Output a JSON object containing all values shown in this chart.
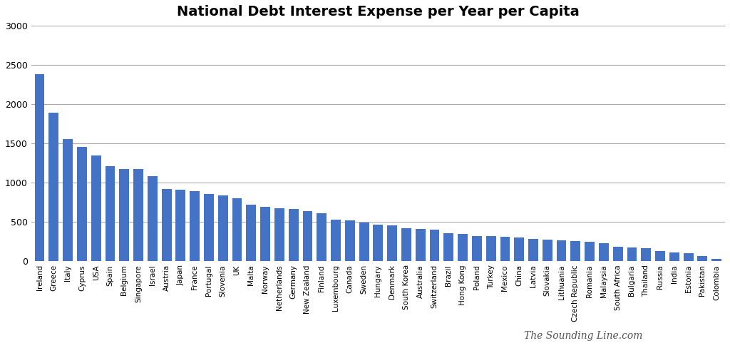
{
  "title": "National Debt Interest Expense per Year per Capita",
  "watermark": "The Sounding Line.com",
  "bar_color": "#4472C4",
  "background_color": "#FFFFFF",
  "grid_color": "#AAAAAA",
  "ylim": [
    0,
    3000
  ],
  "yticks": [
    0,
    500,
    1000,
    1500,
    2000,
    2500,
    3000
  ],
  "categories": [
    "Ireland",
    "Greece",
    "Italy",
    "Cyprus",
    "USA",
    "Spain",
    "Belgium",
    "Singapore",
    "Israel",
    "Austria",
    "Japan",
    "France",
    "Portugal",
    "Slovenia",
    "UK",
    "Malta",
    "Norway",
    "Netherlands",
    "Germany",
    "New Zealand",
    "Finland",
    "Luxembourg",
    "Canada",
    "Sweden",
    "Hungary",
    "Denmark",
    "South Korea",
    "Australia",
    "Switzerland",
    "Brazil",
    "Hong Kong",
    "Poland",
    "Turkey",
    "Mexico",
    "China",
    "Latvia",
    "Slovakia",
    "Lithuania",
    "Czech Republic",
    "Romania",
    "Malaysia",
    "South Africa",
    "Bulgaria",
    "Thailand",
    "Russia",
    "India",
    "Estonia",
    "Pakistan",
    "Colombia"
  ],
  "values": [
    2380,
    1890,
    1560,
    1460,
    1350,
    1210,
    1175,
    1175,
    1080,
    920,
    910,
    890,
    855,
    840,
    800,
    720,
    695,
    675,
    665,
    635,
    610,
    535,
    525,
    490,
    470,
    455,
    420,
    415,
    400,
    355,
    350,
    325,
    320,
    310,
    300,
    290,
    280,
    270,
    255,
    245,
    230,
    185,
    175,
    170,
    135,
    115,
    100,
    65,
    30
  ]
}
